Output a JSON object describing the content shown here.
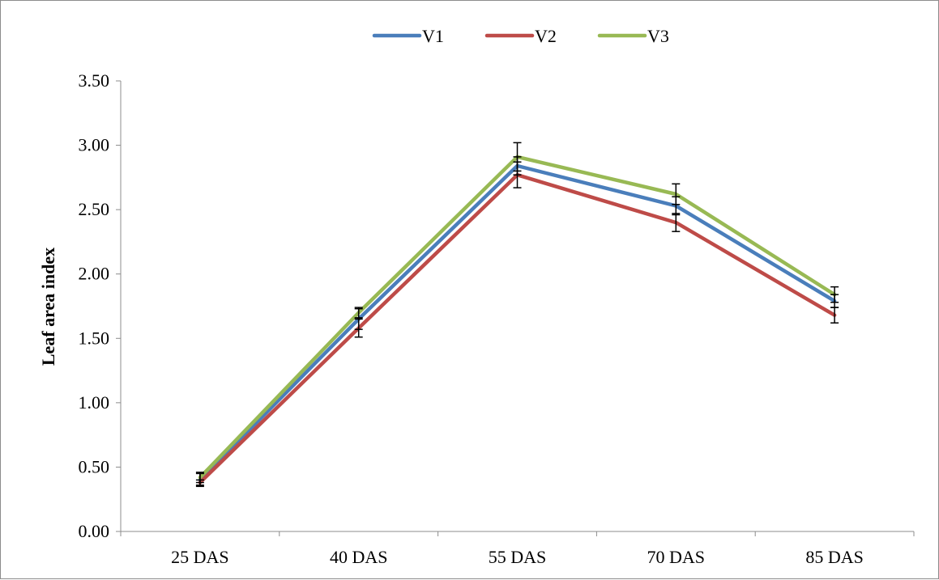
{
  "chart_data": {
    "type": "line",
    "categories": [
      "25 DAS",
      "40 DAS",
      "55 DAS",
      "70 DAS",
      "85 DAS"
    ],
    "ylabel": "Leaf area index",
    "xlabel": "",
    "ylim": [
      0,
      3.5
    ],
    "yticks": [
      "0.00",
      "0.50",
      "1.00",
      "1.50",
      "2.00",
      "2.50",
      "3.00",
      "3.50"
    ],
    "grid": false,
    "legend_position": "top-center",
    "series": [
      {
        "name": "V1",
        "color": "#4a7ebb",
        "values": [
          0.4,
          1.65,
          2.84,
          2.53,
          1.79
        ],
        "errors": [
          0.05,
          0.08,
          0.07,
          0.07,
          0.05
        ]
      },
      {
        "name": "V2",
        "color": "#be4b48",
        "values": [
          0.38,
          1.58,
          2.77,
          2.4,
          1.68
        ],
        "errors": [
          0.02,
          0.07,
          0.1,
          0.07,
          0.06
        ]
      },
      {
        "name": "V3",
        "color": "#98b954",
        "values": [
          0.42,
          1.7,
          2.91,
          2.62,
          1.84
        ],
        "errors": [
          0.04,
          0.04,
          0.11,
          0.08,
          0.06
        ]
      }
    ]
  }
}
